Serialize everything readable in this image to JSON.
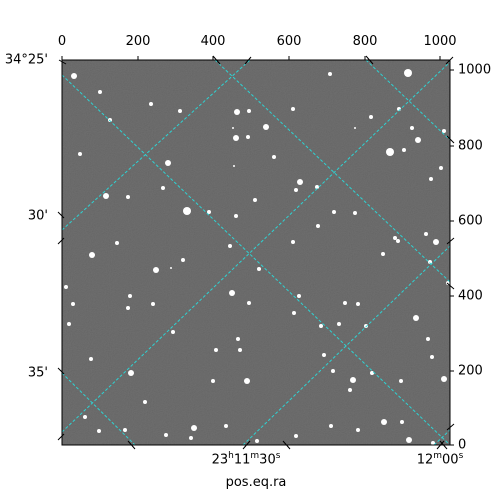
{
  "image": {
    "description_free": true,
    "style": "grayscale astronomical image with WCS grid overlay",
    "grid_color": "#2ed3d3",
    "background_gray": "#6b6b6b"
  },
  "axes": {
    "pixel_x_ticks": [
      "0",
      "200",
      "400",
      "600",
      "800",
      "1000"
    ],
    "pixel_y_ticks": [
      "1000",
      "800",
      "600",
      "400",
      "200",
      "0"
    ],
    "dec_ticks": [
      "34°25'",
      "30'",
      "35'"
    ],
    "ra_ticks": [
      "23h11m30s",
      "12m00s"
    ],
    "x_axis_label": "pos.eq.ra"
  },
  "stars": [
    [
      74,
      76,
      3
    ],
    [
      100,
      92,
      2
    ],
    [
      151,
      104,
      2
    ],
    [
      180,
      111,
      2
    ],
    [
      110,
      120,
      2
    ],
    [
      237,
      112,
      3
    ],
    [
      249,
      111,
      2
    ],
    [
      293,
      109,
      2
    ],
    [
      233,
      128,
      1
    ],
    [
      266,
      127,
      3
    ],
    [
      330,
      74,
      2
    ],
    [
      408,
      73,
      4
    ],
    [
      399,
      109,
      2
    ],
    [
      371,
      117,
      2
    ],
    [
      412,
      128,
      2
    ],
    [
      355,
      128,
      1
    ],
    [
      444,
      131,
      2
    ],
    [
      236,
      138,
      3
    ],
    [
      248,
      137,
      2
    ],
    [
      390,
      152,
      4
    ],
    [
      404,
      150,
      2
    ],
    [
      418,
      140,
      3
    ],
    [
      274,
      157,
      2
    ],
    [
      80,
      154,
      2
    ],
    [
      300,
      182,
      3
    ],
    [
      234,
      166,
      1
    ],
    [
      168,
      163,
      3
    ],
    [
      163,
      188,
      2
    ],
    [
      255,
      200,
      2
    ],
    [
      296,
      190,
      2
    ],
    [
      106,
      196,
      3
    ],
    [
      128,
      197,
      2
    ],
    [
      187,
      211,
      4
    ],
    [
      209,
      212,
      2
    ],
    [
      236,
      216,
      2
    ],
    [
      317,
      187,
      2
    ],
    [
      334,
      212,
      2
    ],
    [
      355,
      213,
      2
    ],
    [
      431,
      179,
      2
    ],
    [
      441,
      168,
      2
    ],
    [
      398,
      241,
      2
    ],
    [
      395,
      238,
      2
    ],
    [
      426,
      234,
      2
    ],
    [
      436,
      242,
      3
    ],
    [
      92,
      255,
      3
    ],
    [
      117,
      243,
      2
    ],
    [
      230,
      246,
      2
    ],
    [
      293,
      242,
      2
    ],
    [
      318,
      226,
      2
    ],
    [
      156,
      270,
      3
    ],
    [
      183,
      260,
      2
    ],
    [
      171,
      268,
      1
    ],
    [
      259,
      269,
      2
    ],
    [
      383,
      254,
      2
    ],
    [
      430,
      262,
      2
    ],
    [
      448,
      283,
      2
    ],
    [
      66,
      287,
      2
    ],
    [
      130,
      296,
      2
    ],
    [
      153,
      304,
      2
    ],
    [
      232,
      293,
      3
    ],
    [
      249,
      303,
      2
    ],
    [
      299,
      296,
      2
    ],
    [
      345,
      303,
      2
    ],
    [
      358,
      304,
      2
    ],
    [
      416,
      318,
      3
    ],
    [
      73,
      304,
      2
    ],
    [
      69,
      324,
      2
    ],
    [
      128,
      308,
      2
    ],
    [
      173,
      332,
      2
    ],
    [
      238,
      339,
      2
    ],
    [
      294,
      313,
      2
    ],
    [
      321,
      326,
      2
    ],
    [
      339,
      324,
      2
    ],
    [
      366,
      326,
      2
    ],
    [
      428,
      339,
      2
    ],
    [
      216,
      350,
      2
    ],
    [
      240,
      350,
      2
    ],
    [
      324,
      355,
      2
    ],
    [
      432,
      357,
      2
    ],
    [
      91,
      359,
      2
    ],
    [
      131,
      373,
      3
    ],
    [
      247,
      381,
      3
    ],
    [
      213,
      381,
      2
    ],
    [
      333,
      371,
      2
    ],
    [
      353,
      380,
      3
    ],
    [
      372,
      373,
      2
    ],
    [
      350,
      390,
      2
    ],
    [
      401,
      381,
      2
    ],
    [
      444,
      379,
      3
    ],
    [
      145,
      402,
      2
    ],
    [
      85,
      417,
      2
    ],
    [
      125,
      430,
      2
    ],
    [
      194,
      428,
      3
    ],
    [
      226,
      426,
      2
    ],
    [
      331,
      426,
      2
    ],
    [
      384,
      422,
      3
    ],
    [
      402,
      422,
      2
    ],
    [
      166,
      435,
      2
    ],
    [
      409,
      440,
      3
    ],
    [
      433,
      443,
      2
    ],
    [
      191,
      438,
      2
    ],
    [
      296,
      436,
      2
    ],
    [
      358,
      430,
      2
    ],
    [
      257,
      441,
      2
    ],
    [
      99,
      431,
      2
    ]
  ]
}
